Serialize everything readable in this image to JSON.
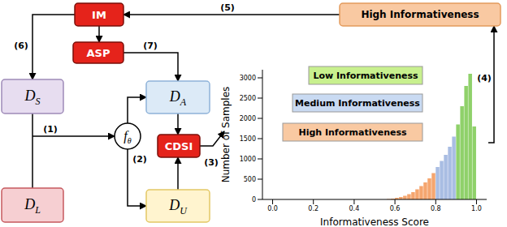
{
  "diagram": {
    "nodes": {
      "im": {
        "label": "IM"
      },
      "asp": {
        "label": "ASP"
      },
      "cdsi": {
        "label": "CDSI"
      },
      "ds": {
        "label": "D",
        "subscript": "S"
      },
      "dl": {
        "label": "D",
        "subscript": "L"
      },
      "da": {
        "label": "D",
        "subscript": "A"
      },
      "du": {
        "label": "D",
        "subscript": "U"
      },
      "f": {
        "label": "f",
        "subscript": "θ"
      },
      "high": {
        "label": "High Informativeness"
      }
    },
    "steps": [
      "(1)",
      "(2)",
      "(3)",
      "(4)",
      "(5)",
      "(6)",
      "(7)"
    ]
  },
  "chart_data": {
    "type": "histogram",
    "xlabel": "Informativeness Score",
    "ylabel": "Number of Samples",
    "bins": [
      0.56,
      0.58,
      0.6,
      0.62,
      0.64,
      0.66,
      0.68,
      0.7,
      0.72,
      0.74,
      0.76,
      0.78,
      0.8,
      0.82,
      0.84,
      0.86,
      0.88,
      0.9,
      0.92,
      0.94,
      0.96,
      0.98,
      1.0
    ],
    "counts": [
      10,
      20,
      40,
      60,
      90,
      130,
      180,
      250,
      330,
      420,
      520,
      650,
      800,
      950,
      1100,
      1300,
      1550,
      1850,
      2300,
      2800,
      3100,
      1800
    ],
    "colors": [
      "#f5a66f",
      "#f5a66f",
      "#f5a66f",
      "#f5a66f",
      "#f5a66f",
      "#f5a66f",
      "#f5a66f",
      "#f5a66f",
      "#f5a66f",
      "#f5a66f",
      "#f5a66f",
      "#f5a66f",
      "#a9bde3",
      "#a9bde3",
      "#a9bde3",
      "#a9bde3",
      "#a9bde3",
      "#8fd16a",
      "#8fd16a",
      "#8fd16a",
      "#8fd16a",
      "#8fd16a"
    ],
    "xlim": [
      -0.05,
      1.05
    ],
    "ylim": [
      0,
      3200
    ],
    "xticks": [
      {
        "value": 0,
        "label": "0.0"
      },
      0.2,
      0.4,
      0.6,
      0.8,
      {
        "value": 1,
        "label": "1.0"
      }
    ],
    "yticks": [
      0,
      500,
      1000,
      1500,
      2000,
      2500,
      3000
    ],
    "annotations": [
      {
        "text": "Low Informativeness",
        "color": "#c8f08e"
      },
      {
        "text": "Medium Informativeness",
        "color": "#c9daf2"
      },
      {
        "text": "High Informativeness",
        "color": "#f9c9a2"
      }
    ]
  }
}
